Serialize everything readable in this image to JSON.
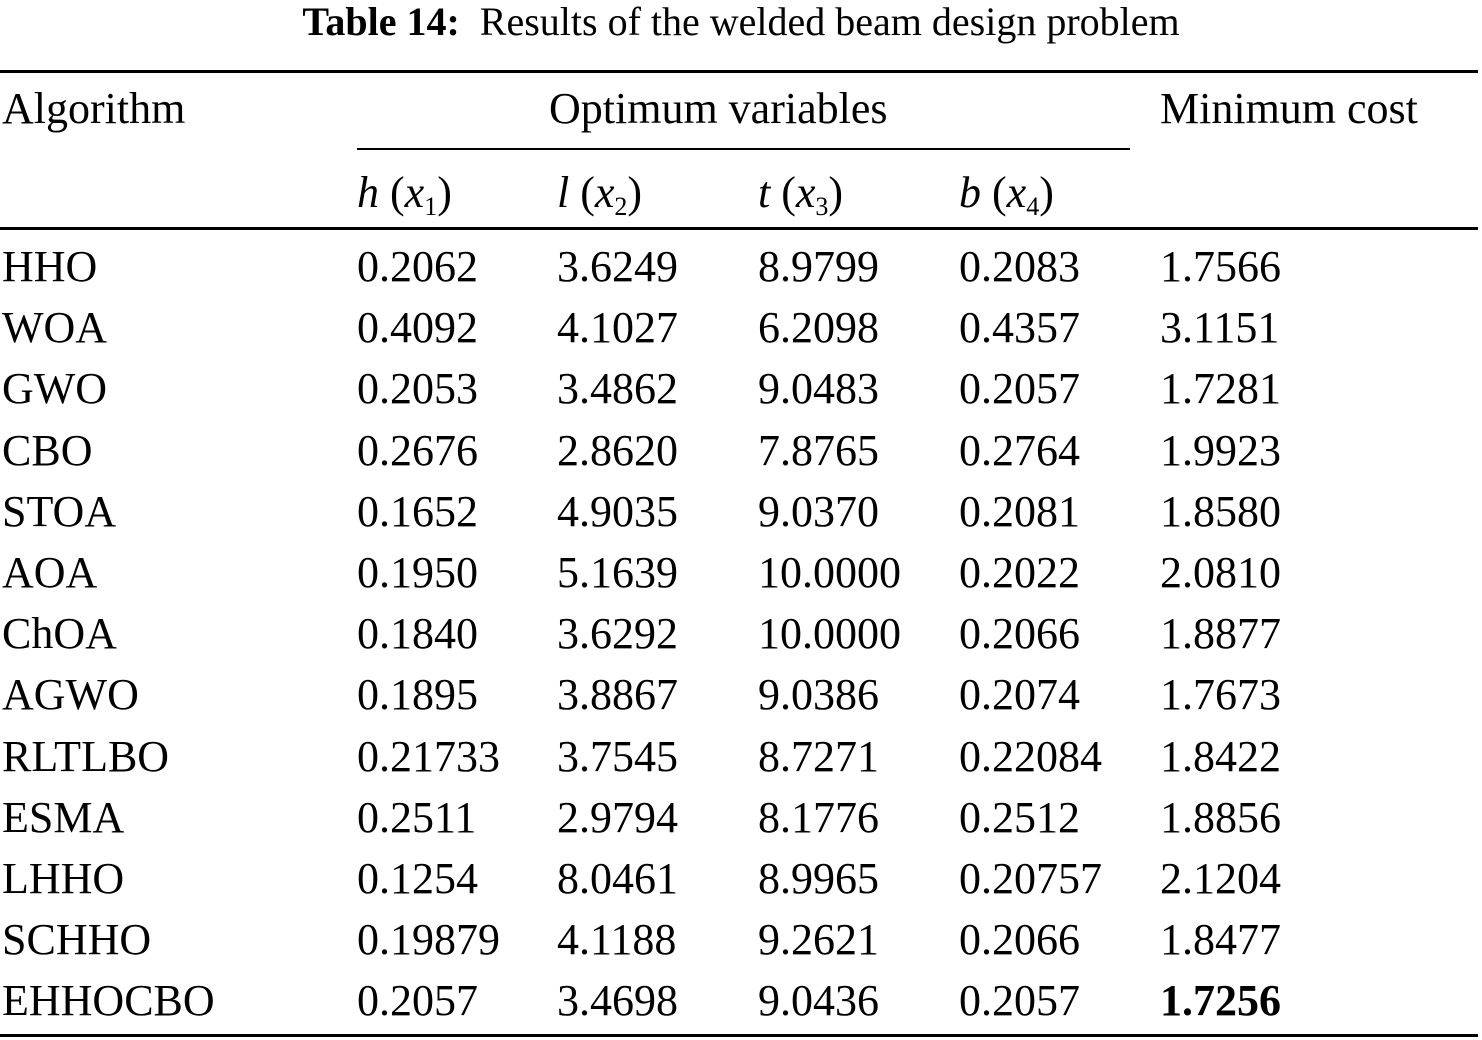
{
  "caption": {
    "label": "Table 14:",
    "text": "Results of the welded beam design problem"
  },
  "header": {
    "algorithm": "Algorithm",
    "group": "Optimum variables",
    "cost": "Minimum cost",
    "vars": [
      {
        "sym": "h",
        "sub": "1"
      },
      {
        "sym": "l",
        "sub": "2"
      },
      {
        "sym": "t",
        "sub": "3"
      },
      {
        "sym": "b",
        "sub": "4"
      }
    ]
  },
  "rows": [
    {
      "algorithm": "HHO",
      "h": "0.2062",
      "l": "3.6249",
      "t": "8.9799",
      "b": "0.2083",
      "cost": "1.7566"
    },
    {
      "algorithm": "WOA",
      "h": "0.4092",
      "l": "4.1027",
      "t": "6.2098",
      "b": "0.4357",
      "cost": "3.1151"
    },
    {
      "algorithm": "GWO",
      "h": "0.2053",
      "l": "3.4862",
      "t": "9.0483",
      "b": "0.2057",
      "cost": "1.7281"
    },
    {
      "algorithm": "CBO",
      "h": "0.2676",
      "l": "2.8620",
      "t": "7.8765",
      "b": "0.2764",
      "cost": "1.9923"
    },
    {
      "algorithm": "STOA",
      "h": "0.1652",
      "l": "4.9035",
      "t": "9.0370",
      "b": "0.2081",
      "cost": "1.8580"
    },
    {
      "algorithm": "AOA",
      "h": "0.1950",
      "l": "5.1639",
      "t": "10.0000",
      "b": "0.2022",
      "cost": "2.0810"
    },
    {
      "algorithm": "ChOA",
      "h": "0.1840",
      "l": "3.6292",
      "t": "10.0000",
      "b": "0.2066",
      "cost": "1.8877"
    },
    {
      "algorithm": "AGWO",
      "h": "0.1895",
      "l": "3.8867",
      "t": "9.0386",
      "b": "0.2074",
      "cost": "1.7673"
    },
    {
      "algorithm": "RLTLBO",
      "h": "0.21733",
      "l": "3.7545",
      "t": "8.7271",
      "b": "0.22084",
      "cost": "1.8422"
    },
    {
      "algorithm": "ESMA",
      "h": "0.2511",
      "l": "2.9794",
      "t": "8.1776",
      "b": "0.2512",
      "cost": "1.8856"
    },
    {
      "algorithm": "LHHO",
      "h": "0.1254",
      "l": "8.0461",
      "t": "8.9965",
      "b": "0.20757",
      "cost": "2.1204"
    },
    {
      "algorithm": "SCHHO",
      "h": "0.19879",
      "l": "4.1188",
      "t": "9.2621",
      "b": "0.2066",
      "cost": "1.8477"
    },
    {
      "algorithm": "EHHOCBO",
      "h": "0.2057",
      "l": "3.4698",
      "t": "9.0436",
      "b": "0.2057",
      "cost": "1.7256",
      "best": true
    }
  ]
}
